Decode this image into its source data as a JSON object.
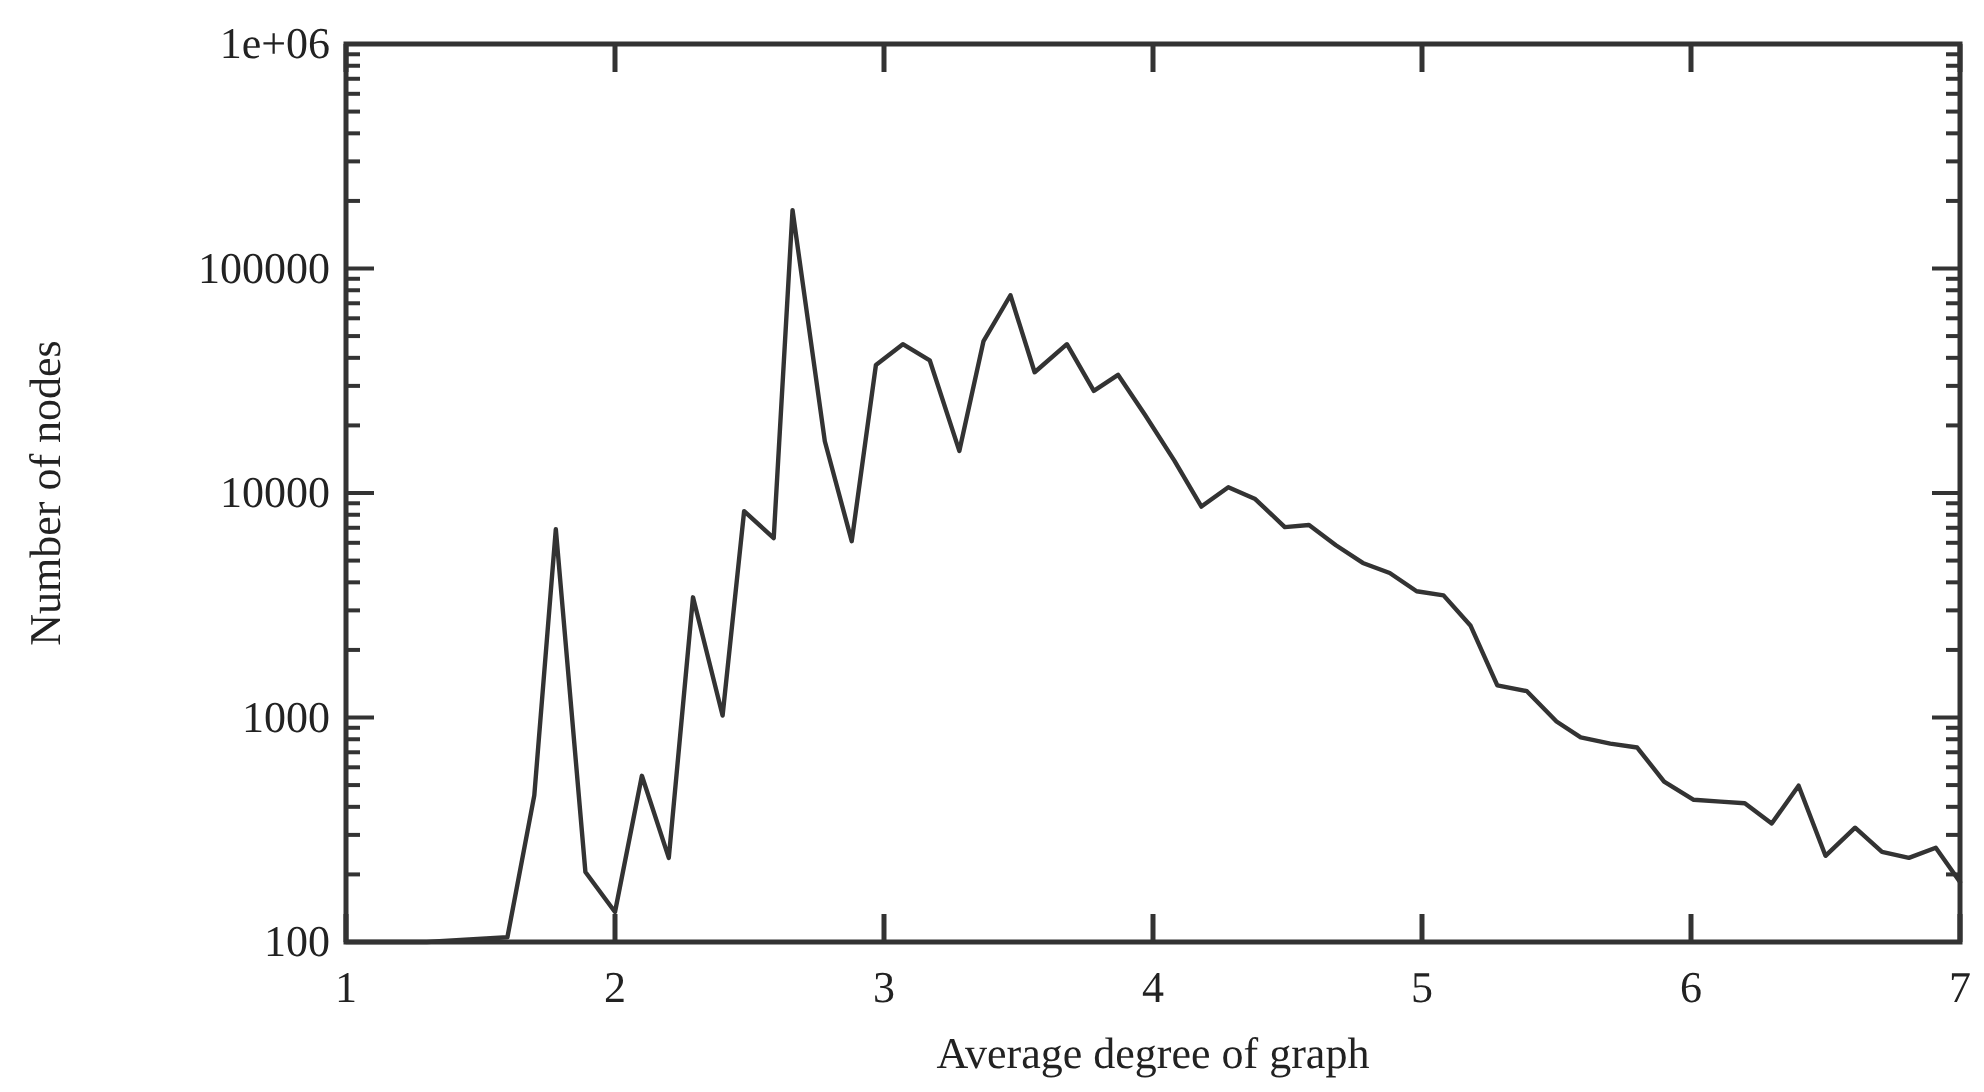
{
  "chart_data": {
    "type": "line",
    "xlabel": "Average degree of graph",
    "ylabel": "Number of nodes",
    "log": "y",
    "grid": false,
    "marker": "none",
    "line_style": "solid",
    "xlim": [
      1,
      7
    ],
    "xticks": [
      1,
      2,
      3,
      4,
      5,
      6,
      7
    ],
    "ylim": [
      100,
      1000000
    ],
    "yticks": [
      100,
      {
        "value": 200,
        "label": null
      },
      {
        "value": 300,
        "label": null
      },
      {
        "value": 400,
        "label": null
      },
      {
        "value": 500,
        "label": null
      },
      {
        "value": 600,
        "label": null
      },
      {
        "value": 700,
        "label": null
      },
      {
        "value": 800,
        "label": null
      },
      {
        "value": 900,
        "label": null
      },
      1000,
      {
        "value": 2000,
        "label": null
      },
      {
        "value": 3000,
        "label": null
      },
      {
        "value": 4000,
        "label": null
      },
      {
        "value": 5000,
        "label": null
      },
      {
        "value": 6000,
        "label": null
      },
      {
        "value": 7000,
        "label": null
      },
      {
        "value": 8000,
        "label": null
      },
      {
        "value": 9000,
        "label": null
      },
      10000,
      {
        "value": 20000,
        "label": null
      },
      {
        "value": 30000,
        "label": null
      },
      {
        "value": 40000,
        "label": null
      },
      {
        "value": 50000,
        "label": null
      },
      {
        "value": 60000,
        "label": null
      },
      {
        "value": 70000,
        "label": null
      },
      {
        "value": 80000,
        "label": null
      },
      {
        "value": 90000,
        "label": null
      },
      100000,
      {
        "value": 200000,
        "label": null
      },
      {
        "value": 300000,
        "label": null
      },
      {
        "value": 400000,
        "label": null
      },
      {
        "value": 500000,
        "label": null
      },
      {
        "value": 600000,
        "label": null
      },
      {
        "value": 700000,
        "label": null
      },
      {
        "value": 800000,
        "label": null
      },
      {
        "value": 900000,
        "label": null
      },
      {
        "value": 1000000,
        "label": "1e+06"
      }
    ],
    "series": [
      {
        "color": "#333333",
        "x": [
          1,
          1.3,
          1.6,
          1.7,
          1.78,
          1.89,
          2.0,
          2.1,
          2.2,
          2.29,
          2.4,
          2.48,
          2.59,
          2.66,
          2.78,
          2.88,
          2.97,
          3.07,
          3.17,
          3.28,
          3.37,
          3.47,
          3.56,
          3.68,
          3.78,
          3.87,
          3.97,
          4.08,
          4.18,
          4.28,
          4.38,
          4.49,
          4.58,
          4.68,
          4.78,
          4.88,
          4.98,
          5.08,
          5.18,
          5.28,
          5.39,
          5.5,
          5.59,
          5.7,
          5.8,
          5.9,
          6.01,
          6.11,
          6.2,
          6.3,
          6.4,
          6.5,
          6.61,
          6.71,
          6.81,
          6.91,
          7.0
        ],
        "values": [
          100,
          100,
          105,
          450,
          6900,
          205,
          136,
          550,
          237,
          3430,
          1020,
          8300,
          6300,
          182000,
          17000,
          6100,
          37200,
          46000,
          39000,
          15400,
          47500,
          76000,
          34500,
          46000,
          28500,
          33600,
          22300,
          13900,
          8700,
          10600,
          9400,
          7050,
          7200,
          5850,
          4880,
          4400,
          3650,
          3500,
          2570,
          1390,
          1310,
          960,
          815,
          765,
          735,
          518,
          430,
          422,
          415,
          337,
          497,
          242,
          323,
          252,
          237,
          263,
          185
        ]
      }
    ]
  }
}
